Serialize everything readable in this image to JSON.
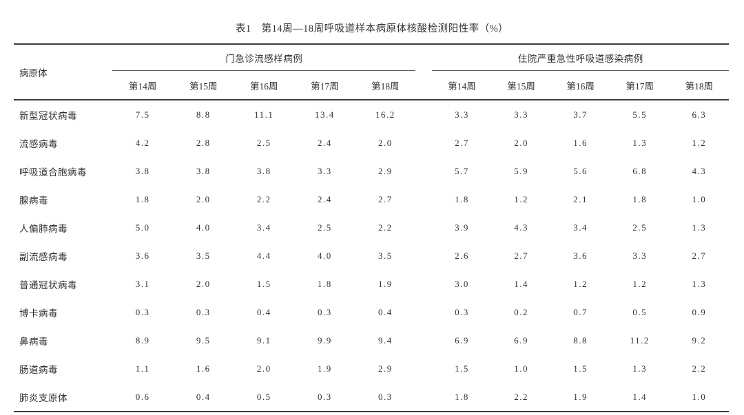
{
  "title": "表1　第14周—18周呼吸道样本病原体核酸检测阳性率（%）",
  "table": {
    "pathogen_header": "病原体",
    "groups": [
      {
        "label": "门急诊流感样病例",
        "weeks": [
          "第14周",
          "第15周",
          "第16周",
          "第17周",
          "第18周"
        ]
      },
      {
        "label": "住院严重急性呼吸道感染病例",
        "weeks": [
          "第14周",
          "第15周",
          "第16周",
          "第17周",
          "第18周"
        ]
      }
    ],
    "rows": [
      {
        "pathogen": "新型冠状病毒",
        "outpatient": [
          "7.5",
          "8.8",
          "11.1",
          "13.4",
          "16.2"
        ],
        "inpatient": [
          "3.3",
          "3.3",
          "3.7",
          "5.5",
          "6.3"
        ]
      },
      {
        "pathogen": "流感病毒",
        "outpatient": [
          "4.2",
          "2.8",
          "2.5",
          "2.4",
          "2.0"
        ],
        "inpatient": [
          "2.7",
          "2.0",
          "1.6",
          "1.3",
          "1.2"
        ]
      },
      {
        "pathogen": "呼吸道合胞病毒",
        "outpatient": [
          "3.8",
          "3.8",
          "3.8",
          "3.3",
          "2.9"
        ],
        "inpatient": [
          "5.7",
          "5.9",
          "5.6",
          "6.8",
          "4.3"
        ]
      },
      {
        "pathogen": "腺病毒",
        "outpatient": [
          "1.8",
          "2.0",
          "2.2",
          "2.4",
          "2.7"
        ],
        "inpatient": [
          "1.8",
          "1.2",
          "2.1",
          "1.8",
          "1.0"
        ]
      },
      {
        "pathogen": "人偏肺病毒",
        "outpatient": [
          "5.0",
          "4.0",
          "3.4",
          "2.5",
          "2.2"
        ],
        "inpatient": [
          "3.9",
          "4.3",
          "3.4",
          "2.5",
          "1.3"
        ]
      },
      {
        "pathogen": "副流感病毒",
        "outpatient": [
          "3.6",
          "3.5",
          "4.4",
          "4.0",
          "3.5"
        ],
        "inpatient": [
          "2.6",
          "2.7",
          "3.6",
          "3.3",
          "2.7"
        ]
      },
      {
        "pathogen": "普通冠状病毒",
        "outpatient": [
          "3.1",
          "2.0",
          "1.5",
          "1.8",
          "1.9"
        ],
        "inpatient": [
          "3.0",
          "1.4",
          "1.2",
          "1.2",
          "1.3"
        ]
      },
      {
        "pathogen": "博卡病毒",
        "outpatient": [
          "0.3",
          "0.3",
          "0.4",
          "0.3",
          "0.4"
        ],
        "inpatient": [
          "0.3",
          "0.2",
          "0.7",
          "0.5",
          "0.9"
        ]
      },
      {
        "pathogen": "鼻病毒",
        "outpatient": [
          "8.9",
          "9.5",
          "9.1",
          "9.9",
          "9.4"
        ],
        "inpatient": [
          "6.9",
          "6.9",
          "8.8",
          "11.2",
          "9.2"
        ]
      },
      {
        "pathogen": "肠道病毒",
        "outpatient": [
          "1.1",
          "1.6",
          "2.0",
          "1.9",
          "2.9"
        ],
        "inpatient": [
          "1.5",
          "1.0",
          "1.5",
          "1.3",
          "2.2"
        ]
      },
      {
        "pathogen": "肺炎支原体",
        "outpatient": [
          "0.6",
          "0.4",
          "0.5",
          "0.3",
          "0.3"
        ],
        "inpatient": [
          "1.8",
          "2.2",
          "1.9",
          "1.4",
          "1.0"
        ]
      }
    ]
  }
}
